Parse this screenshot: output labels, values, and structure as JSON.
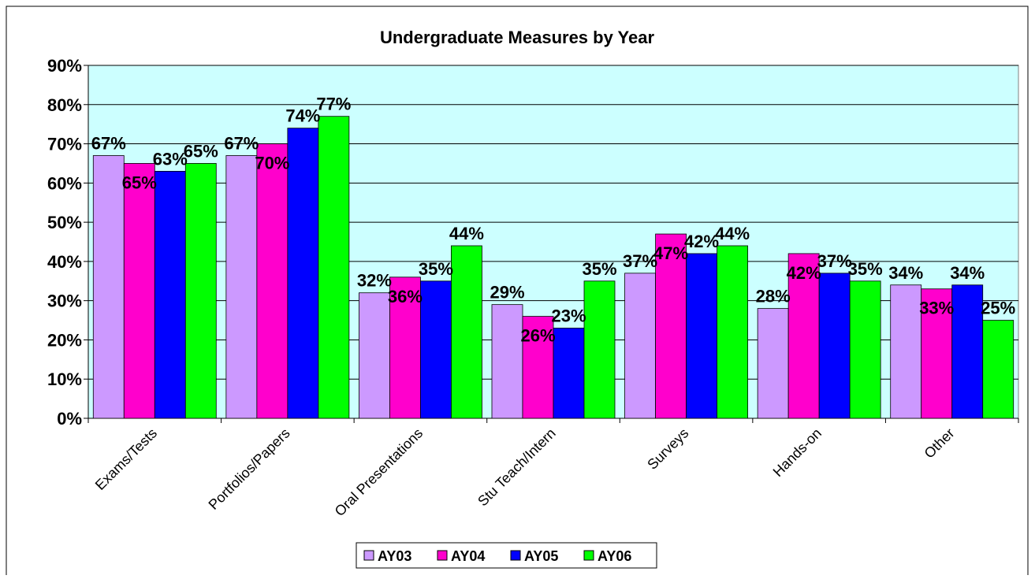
{
  "chart_data": {
    "type": "bar",
    "title": "Undergraduate Measures by Year",
    "categories": [
      "Exams/Tests",
      "Portfolios/Papers",
      "Oral Presentations",
      "Stu Teach/Intern",
      "Surveys",
      "Hands-on",
      "Other"
    ],
    "series": [
      {
        "name": "AY03",
        "color": "#cc99ff",
        "values": [
          67,
          67,
          32,
          29,
          37,
          28,
          34
        ],
        "value_labels": [
          "67%",
          "67%",
          "32%",
          "29%",
          "37%",
          "28%",
          "34%"
        ]
      },
      {
        "name": "AY04",
        "color": "#ff00cc",
        "values": [
          65,
          70,
          36,
          26,
          47,
          42,
          33
        ],
        "value_labels": [
          "65%",
          "70%",
          "36%",
          "26%",
          "47%",
          "42%",
          "33%"
        ]
      },
      {
        "name": "AY05",
        "color": "#0000ff",
        "values": [
          63,
          74,
          35,
          23,
          42,
          37,
          34
        ],
        "value_labels": [
          "63%",
          "74%",
          "35%",
          "23%",
          "42%",
          "37%",
          "34%"
        ]
      },
      {
        "name": "AY06",
        "color": "#00ff00",
        "values": [
          65,
          77,
          44,
          35,
          44,
          35,
          25
        ],
        "value_labels": [
          "65%",
          "77%",
          "44%",
          "35%",
          "44%",
          "35%",
          "25%"
        ]
      }
    ],
    "ylim": [
      0,
      90
    ],
    "yticks": [
      {
        "value": 0,
        "label": "0%"
      },
      {
        "value": 10,
        "label": "10%"
      },
      {
        "value": 20,
        "label": "20%"
      },
      {
        "value": 30,
        "label": "30%"
      },
      {
        "value": 40,
        "label": "40%"
      },
      {
        "value": 50,
        "label": "50%"
      },
      {
        "value": 60,
        "label": "60%"
      },
      {
        "value": 70,
        "label": "70%"
      },
      {
        "value": 80,
        "label": "80%"
      },
      {
        "value": 90,
        "label": "90%"
      }
    ],
    "grid": true,
    "legend": "bottom",
    "plot_background": "#ccffff"
  }
}
